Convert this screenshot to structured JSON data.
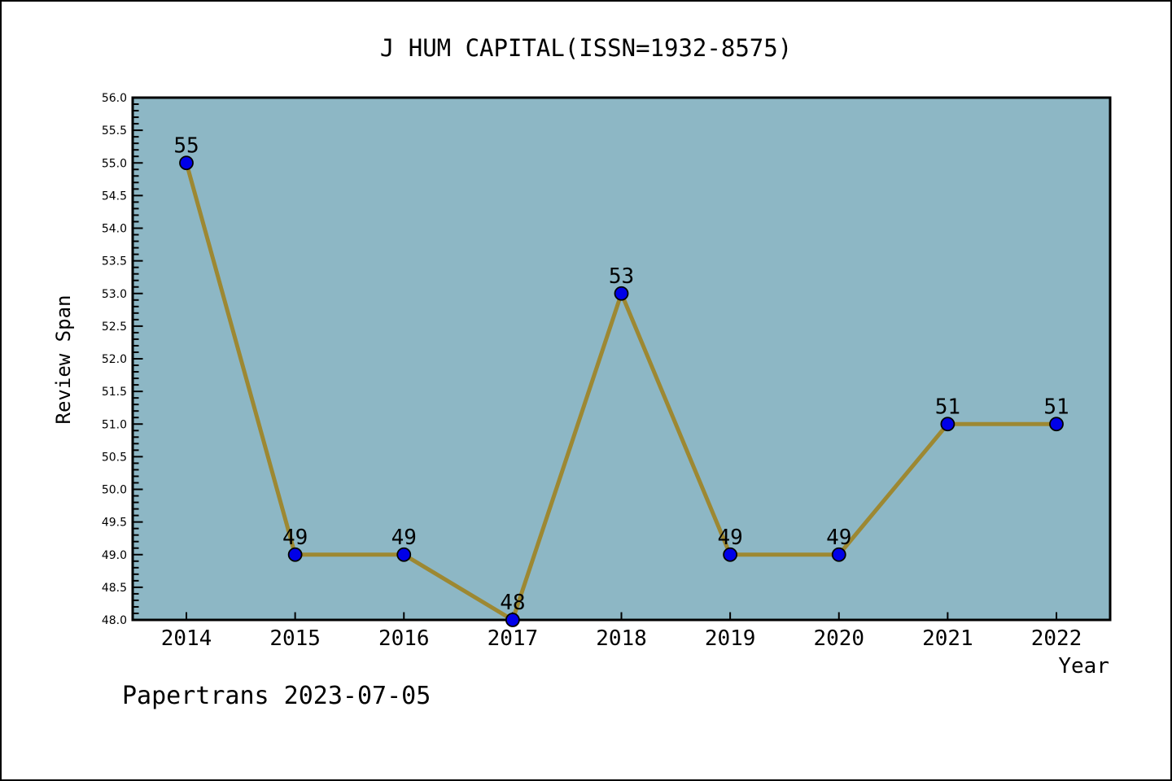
{
  "title": "J HUM CAPITAL(ISSN=1932-8575)",
  "footer": "Papertrans 2023-07-05",
  "chart_data": {
    "type": "line",
    "title": "J HUM CAPITAL(ISSN=1932-8575)",
    "categories": [
      "2014",
      "2015",
      "2016",
      "2017",
      "2018",
      "2019",
      "2020",
      "2021",
      "2022"
    ],
    "values": [
      55,
      49,
      49,
      48,
      53,
      49,
      49,
      51,
      51
    ],
    "point_labels": [
      "55",
      "49",
      "49",
      "48",
      "53",
      "49",
      "49",
      "51",
      "51"
    ],
    "xlabel": "Year",
    "ylabel": "Review Span",
    "ylim": [
      48.0,
      56.0
    ],
    "y_major_step": 0.5,
    "y_minor_step": 0.1,
    "y_tick_labels": [
      "48.0",
      "48.5",
      "49.0",
      "49.5",
      "50.0",
      "50.5",
      "51.0",
      "51.5",
      "52.0",
      "52.5",
      "53.0",
      "53.5",
      "54.0",
      "54.5",
      "55.0",
      "55.5",
      "56.0"
    ],
    "grid": false,
    "legend": "none",
    "colors": {
      "plot_background": "#8db7c5",
      "line": "#9d8832",
      "marker_fill": "#0000e8",
      "marker_edge": "#000000",
      "axis": "#000000",
      "text": "#000000"
    }
  }
}
